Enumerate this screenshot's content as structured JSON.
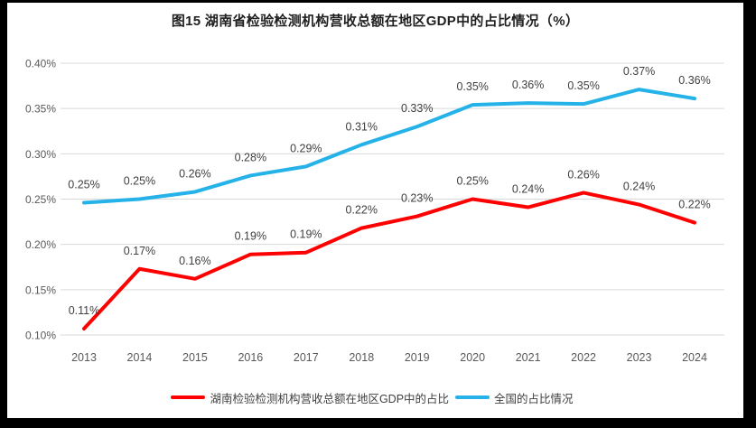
{
  "frame": {
    "border_color": "#000000",
    "panel_background": "#ffffff",
    "gridline_color": "#d9d9d9",
    "axis_text_color": "#595959",
    "data_label_color": "#404040"
  },
  "chart_data": {
    "type": "line",
    "title": "图15 湖南省检验检测机构营收总额在地区GDP中的占比情况（%）",
    "categories": [
      "2013",
      "2014",
      "2015",
      "2016",
      "2017",
      "2018",
      "2019",
      "2020",
      "2021",
      "2022",
      "2023",
      "2024"
    ],
    "y_axis": {
      "min": 0.1,
      "max": 0.4,
      "step": 0.05,
      "ticks": [
        "0.40%",
        "0.35%",
        "0.30%",
        "0.25%",
        "0.20%",
        "0.15%",
        "0.10%"
      ],
      "unit": "%"
    },
    "grid": true,
    "legend_position": "bottom",
    "series": [
      {
        "name": "湖南检验检测机构营收总额在地区GDP中的占比",
        "color": "#ff0000",
        "values": [
          0.11,
          0.17,
          0.16,
          0.19,
          0.19,
          0.22,
          0.23,
          0.25,
          0.24,
          0.26,
          0.24,
          0.22
        ],
        "labels": [
          "0.11%",
          "0.17%",
          "0.16%",
          "0.19%",
          "0.19%",
          "0.22%",
          "0.23%",
          "0.25%",
          "0.24%",
          "0.26%",
          "0.24%",
          "0.22%"
        ],
        "plot_values": [
          0.107,
          0.173,
          0.162,
          0.189,
          0.191,
          0.218,
          0.231,
          0.25,
          0.241,
          0.257,
          0.244,
          0.224
        ]
      },
      {
        "name": "全国的占比情况",
        "color": "#25b2e8",
        "values": [
          0.25,
          0.25,
          0.26,
          0.28,
          0.29,
          0.31,
          0.33,
          0.35,
          0.36,
          0.35,
          0.37,
          0.36
        ],
        "labels": [
          "0.25%",
          "0.25%",
          "0.26%",
          "0.28%",
          "0.29%",
          "0.31%",
          "0.33%",
          "0.35%",
          "0.36%",
          "0.35%",
          "0.37%",
          "0.36%"
        ],
        "plot_values": [
          0.246,
          0.25,
          0.258,
          0.276,
          0.286,
          0.31,
          0.33,
          0.354,
          0.356,
          0.355,
          0.371,
          0.361
        ]
      }
    ]
  }
}
